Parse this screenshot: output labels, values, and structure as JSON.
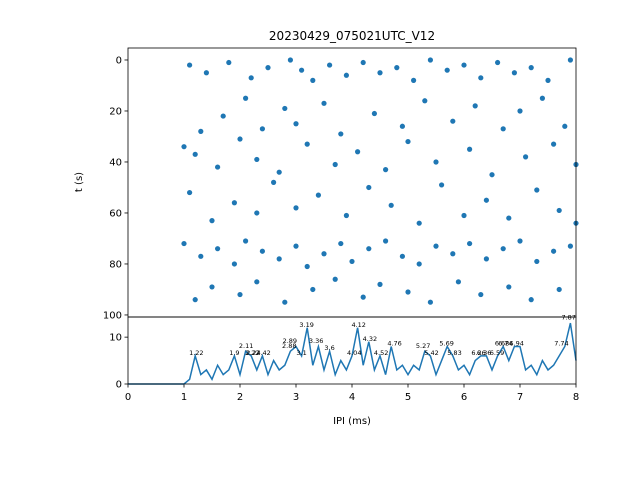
{
  "chart_data": [
    {
      "type": "scatter",
      "title": "20230429_075021UTC_V12",
      "y_label": "t (s)",
      "color": "#1f77b4",
      "xlim": [
        0,
        8
      ],
      "ylim": [
        100.8,
        -4.7
      ],
      "yticks": [
        0,
        20,
        40,
        60,
        80,
        100
      ],
      "x": [
        1.1,
        1.4,
        1.8,
        2.2,
        2.5,
        2.9,
        3.1,
        3.3,
        3.6,
        3.9,
        4.2,
        4.5,
        4.8,
        5.1,
        5.4,
        5.7,
        6.0,
        6.3,
        6.6,
        6.9,
        7.2,
        7.5,
        7.9,
        1.3,
        1.7,
        2.1,
        2.4,
        2.8,
        3.0,
        3.5,
        3.8,
        4.4,
        4.9,
        5.3,
        5.8,
        6.2,
        6.7,
        7.0,
        7.4,
        7.8,
        1.0,
        1.2,
        1.6,
        2.0,
        2.3,
        2.7,
        3.2,
        3.7,
        4.1,
        4.6,
        5.0,
        5.5,
        6.1,
        6.5,
        7.1,
        7.6,
        8.0,
        1.1,
        1.5,
        1.9,
        2.3,
        2.6,
        3.0,
        3.4,
        3.9,
        4.3,
        4.7,
        5.2,
        5.6,
        6.0,
        6.4,
        6.8,
        7.3,
        7.7,
        8.0,
        1.0,
        1.3,
        1.6,
        1.9,
        2.1,
        2.4,
        2.7,
        3.0,
        3.2,
        3.5,
        3.8,
        4.0,
        4.3,
        4.6,
        4.9,
        5.2,
        5.5,
        5.8,
        6.1,
        6.4,
        6.7,
        7.0,
        7.3,
        7.6,
        7.9,
        1.2,
        1.5,
        2.0,
        2.3,
        2.8,
        3.3,
        3.7,
        4.2,
        4.5,
        5.0,
        5.4,
        5.9,
        6.3,
        6.8,
        7.2,
        7.7
      ],
      "values": [
        2,
        5,
        1,
        7,
        3,
        0,
        4,
        8,
        2,
        6,
        1,
        5,
        3,
        8,
        0,
        4,
        2,
        7,
        1,
        5,
        3,
        8,
        0,
        28,
        22,
        15,
        27,
        19,
        25,
        17,
        29,
        21,
        26,
        16,
        24,
        18,
        27,
        20,
        15,
        26,
        34,
        37,
        42,
        31,
        39,
        44,
        33,
        41,
        36,
        43,
        32,
        40,
        35,
        45,
        38,
        33,
        41,
        52,
        63,
        56,
        60,
        48,
        58,
        53,
        61,
        50,
        57,
        64,
        49,
        61,
        55,
        62,
        51,
        59,
        64,
        72,
        77,
        74,
        80,
        71,
        75,
        78,
        73,
        81,
        76,
        72,
        79,
        74,
        71,
        77,
        80,
        73,
        76,
        72,
        78,
        74,
        71,
        79,
        75,
        73,
        94,
        89,
        92,
        87,
        95,
        90,
        86,
        93,
        88,
        91,
        95,
        87,
        92,
        89,
        94,
        90
      ]
    },
    {
      "type": "line",
      "x_label": "IPI (ms)",
      "color": "#1f77b4",
      "xlim": [
        0,
        8
      ],
      "xticks": [
        0,
        1,
        2,
        3,
        4,
        5,
        6,
        7,
        8
      ],
      "ylim": [
        0,
        14.3
      ],
      "yticks": [
        0,
        10
      ],
      "x": [
        0,
        0.1,
        0.2,
        0.3,
        0.4,
        0.5,
        0.6,
        0.7,
        0.8,
        0.9,
        1.0,
        1.1,
        1.2,
        1.3,
        1.4,
        1.5,
        1.6,
        1.7,
        1.8,
        1.9,
        2.0,
        2.1,
        2.2,
        2.3,
        2.4,
        2.5,
        2.6,
        2.7,
        2.8,
        2.9,
        3.0,
        3.1,
        3.2,
        3.3,
        3.4,
        3.5,
        3.6,
        3.7,
        3.8,
        3.9,
        4.0,
        4.1,
        4.2,
        4.3,
        4.4,
        4.5,
        4.6,
        4.7,
        4.8,
        4.9,
        5.0,
        5.1,
        5.2,
        5.3,
        5.4,
        5.5,
        5.6,
        5.7,
        5.8,
        5.9,
        6.0,
        6.1,
        6.2,
        6.3,
        6.4,
        6.5,
        6.6,
        6.7,
        6.8,
        6.9,
        7.0,
        7.1,
        7.2,
        7.3,
        7.4,
        7.5,
        7.6,
        7.7,
        7.8,
        7.9,
        8.0
      ],
      "values": [
        0,
        0,
        0,
        0,
        0,
        0,
        0,
        0,
        0,
        0,
        0,
        1,
        6,
        2,
        3,
        1,
        4,
        2,
        3,
        6,
        2,
        7,
        6,
        3,
        6,
        2,
        5,
        3,
        4,
        7,
        8,
        6,
        12,
        4,
        8,
        3,
        7,
        2,
        5,
        3,
        6,
        12,
        4,
        9,
        3,
        6,
        2,
        8,
        3,
        4,
        2,
        4,
        3,
        7,
        6,
        2,
        5,
        8,
        6,
        3,
        4,
        2,
        5,
        6,
        6,
        3,
        6,
        8,
        5,
        8,
        8,
        3,
        4,
        2,
        5,
        3,
        4,
        6,
        8,
        13,
        5
      ],
      "annotations": [
        {
          "text": "1.22",
          "x": 1.22,
          "y": 6
        },
        {
          "text": "1.9",
          "x": 1.9,
          "y": 6
        },
        {
          "text": "2.11",
          "x": 2.11,
          "y": 7.5
        },
        {
          "text": "2.22",
          "x": 2.22,
          "y": 6
        },
        {
          "text": "2.24",
          "x": 2.24,
          "y": 6
        },
        {
          "text": "2.42",
          "x": 2.42,
          "y": 6
        },
        {
          "text": "2.88",
          "x": 2.88,
          "y": 7.5
        },
        {
          "text": "2.89",
          "x": 2.89,
          "y": 8.5
        },
        {
          "text": "3.1",
          "x": 3.1,
          "y": 6
        },
        {
          "text": "3.19",
          "x": 3.19,
          "y": 12
        },
        {
          "text": "3.36",
          "x": 3.36,
          "y": 8.5
        },
        {
          "text": "3.6",
          "x": 3.6,
          "y": 7
        },
        {
          "text": "4.04",
          "x": 4.04,
          "y": 6
        },
        {
          "text": "4.12",
          "x": 4.12,
          "y": 12
        },
        {
          "text": "4.32",
          "x": 4.32,
          "y": 9
        },
        {
          "text": "4.52",
          "x": 4.52,
          "y": 6
        },
        {
          "text": "4.76",
          "x": 4.76,
          "y": 8
        },
        {
          "text": "5.27",
          "x": 5.27,
          "y": 7.5
        },
        {
          "text": "5.42",
          "x": 5.42,
          "y": 6
        },
        {
          "text": "5.69",
          "x": 5.69,
          "y": 8
        },
        {
          "text": "5.83",
          "x": 5.83,
          "y": 6
        },
        {
          "text": "6.26",
          "x": 6.26,
          "y": 6
        },
        {
          "text": "6.36",
          "x": 6.36,
          "y": 6
        },
        {
          "text": "6.59",
          "x": 6.59,
          "y": 6
        },
        {
          "text": "6.68",
          "x": 6.68,
          "y": 8
        },
        {
          "text": "6.74",
          "x": 6.74,
          "y": 8
        },
        {
          "text": "6.94",
          "x": 6.94,
          "y": 8
        },
        {
          "text": "7.74",
          "x": 7.74,
          "y": 8
        },
        {
          "text": "7.87",
          "x": 7.87,
          "y": 13.5
        }
      ]
    }
  ]
}
